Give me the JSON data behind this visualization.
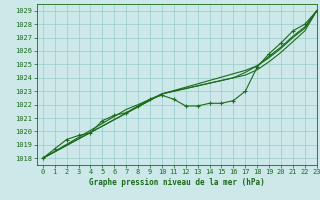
{
  "title": "Graphe pression niveau de la mer (hPa)",
  "background_color": "#cce8e8",
  "grid_color": "#99cccc",
  "line_color": "#1a6b1a",
  "xlim": [
    -0.5,
    23
  ],
  "ylim": [
    1017.5,
    1029.5
  ],
  "yticks": [
    1018,
    1019,
    1020,
    1021,
    1022,
    1023,
    1024,
    1025,
    1026,
    1027,
    1028,
    1029
  ],
  "xticks": [
    0,
    1,
    2,
    3,
    4,
    5,
    6,
    7,
    8,
    9,
    10,
    11,
    12,
    13,
    14,
    15,
    16,
    17,
    18,
    19,
    20,
    21,
    22,
    23
  ],
  "main_y": [
    1018.0,
    1018.7,
    1019.4,
    1019.7,
    1019.9,
    1020.8,
    1021.2,
    1021.4,
    1021.9,
    1022.4,
    1022.7,
    1022.4,
    1021.9,
    1021.9,
    1022.1,
    1022.1,
    1022.3,
    1023.0,
    1024.8,
    1025.8,
    1026.6,
    1027.5,
    1028.0,
    1029.0
  ],
  "linear1_y": [
    1018.0,
    1018.48,
    1018.96,
    1019.44,
    1019.92,
    1020.4,
    1020.88,
    1021.36,
    1021.84,
    1022.32,
    1022.8,
    1023.0,
    1023.2,
    1023.4,
    1023.6,
    1023.8,
    1024.0,
    1024.2,
    1024.6,
    1025.2,
    1025.9,
    1026.7,
    1027.5,
    1029.0
  ],
  "linear2_y": [
    1018.0,
    1018.48,
    1018.96,
    1019.44,
    1019.92,
    1020.4,
    1020.88,
    1021.36,
    1021.84,
    1022.32,
    1022.8,
    1023.05,
    1023.3,
    1023.55,
    1023.8,
    1024.05,
    1024.3,
    1024.55,
    1024.9,
    1025.5,
    1026.2,
    1027.0,
    1027.7,
    1029.0
  ],
  "linear3_y": [
    1018.0,
    1018.52,
    1019.04,
    1019.56,
    1020.08,
    1020.6,
    1021.12,
    1021.64,
    1022.0,
    1022.4,
    1022.8,
    1023.0,
    1023.2,
    1023.4,
    1023.6,
    1023.8,
    1024.0,
    1024.4,
    1024.9,
    1025.6,
    1026.3,
    1027.1,
    1027.8,
    1029.0
  ]
}
